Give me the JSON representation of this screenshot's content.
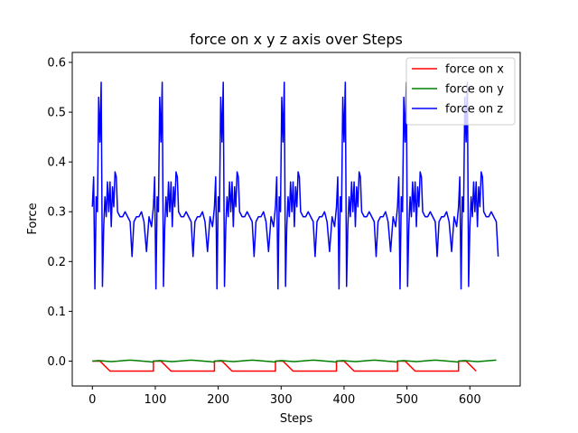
{
  "chart_data": {
    "type": "line",
    "title": "force on x y z axis over Steps",
    "xlabel": "Steps",
    "ylabel": "Force",
    "xlim": [
      -32,
      680
    ],
    "ylim": [
      -0.05,
      0.62
    ],
    "xticks": [
      0,
      100,
      200,
      300,
      400,
      500,
      600
    ],
    "yticks": [
      0.0,
      0.1,
      0.2,
      0.3,
      0.4,
      0.5,
      0.6
    ],
    "xtick_labels": [
      "0",
      "100",
      "200",
      "300",
      "400",
      "500",
      "600"
    ],
    "ytick_labels": [
      "0.0",
      "0.1",
      "0.2",
      "0.3",
      "0.4",
      "0.5",
      "0.6"
    ],
    "legend_position": "top-right",
    "grid": false,
    "cycle_period": 97,
    "n_steps": 646,
    "series": [
      {
        "name": "force on x",
        "color": "#ff0000",
        "cycle_x": [
          0,
          12,
          28,
          97
        ],
        "cycle_y": [
          0.0,
          0.0,
          -0.02,
          -0.02
        ]
      },
      {
        "name": "force on y",
        "color": "#008000",
        "cycle_x": [
          0,
          10,
          20,
          30,
          40,
          50,
          60,
          70,
          80,
          90,
          96
        ],
        "cycle_y": [
          0.0,
          0.001,
          0.0,
          -0.001,
          0.0,
          0.001,
          0.002,
          0.001,
          0.0,
          -0.001,
          -0.002
        ]
      },
      {
        "name": "force on z",
        "color": "#0000ff",
        "cycle_x": [
          0,
          2,
          4,
          6,
          8,
          10,
          12,
          14,
          16,
          18,
          20,
          22,
          24,
          26,
          28,
          30,
          32,
          34,
          36,
          38,
          40,
          44,
          48,
          52,
          56,
          60,
          63,
          66,
          70,
          74,
          78,
          82,
          86,
          90,
          94,
          97
        ],
        "cycle_y": [
          0.31,
          0.37,
          0.145,
          0.33,
          0.3,
          0.53,
          0.44,
          0.56,
          0.15,
          0.27,
          0.33,
          0.29,
          0.36,
          0.3,
          0.36,
          0.27,
          0.35,
          0.31,
          0.38,
          0.37,
          0.3,
          0.29,
          0.29,
          0.3,
          0.29,
          0.28,
          0.21,
          0.28,
          0.29,
          0.29,
          0.3,
          0.28,
          0.22,
          0.29,
          0.27,
          0.31
        ]
      }
    ]
  }
}
